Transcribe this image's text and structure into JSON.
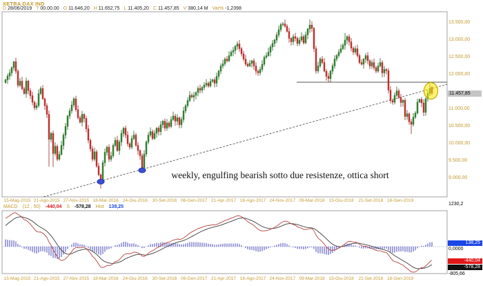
{
  "header": {
    "symbol": "XETRA DAX IND",
    "fields": [
      {
        "label": "D",
        "value": "28/06/2019"
      },
      {
        "label": "T",
        "value": "00.00.00"
      },
      {
        "label": "O",
        "value": "11.646,20"
      },
      {
        "label": "H",
        "value": "11.652,75"
      },
      {
        "label": "L",
        "value": "11.405,20"
      },
      {
        "label": "C",
        "value": "11.457,85"
      },
      {
        "label": "V",
        "value": "380,14 M"
      },
      {
        "label": "Var%",
        "value": "-1,2398"
      }
    ]
  },
  "annotation": "weekly, engulfing bearish sotto due resistenze, ottica short",
  "price_axis": {
    "labels": [
      "13.500,00",
      "13.000,00",
      "12.500,00",
      "12.000,00",
      "11.000,00",
      "10.500,00",
      "10.000,00",
      "9.500,00",
      "9.000,00"
    ],
    "label_prices": [
      13500,
      13000,
      12500,
      12000,
      11000,
      10500,
      10000,
      9500,
      9000
    ],
    "last_price_badge": "11.457,85"
  },
  "date_axis": [
    "15-Mag-2015",
    "21-Ago-2015",
    "27-Nov-2015",
    "18-Mar-2016",
    "24-Giu-2016",
    "30-Set-2016",
    "06-Gen-2017",
    "21-Apr-2017",
    "18-Ago-2017",
    "24-Nov-2017",
    "09-Mar-2018",
    "15-Giu-2018",
    "21-Set-2018",
    "18-Gen-2019"
  ],
  "macd_label": {
    "name": "MACD",
    "params": "(12 , 50)",
    "macd_value": "-440,04",
    "signal_label": "S",
    "signal_value": "-578,28",
    "hist_label": "Hist",
    "hist_value": "138,25"
  },
  "macd_axis": {
    "top": "1230,2",
    "zero": "0,0000",
    "bottom": "-805,66",
    "hist_badge": "138,25",
    "macd_badge": "-440,04",
    "signal_badge": "-578,28"
  },
  "colors": {
    "axis_text": "#c49a2e",
    "value_text": "#1a1a1a",
    "candle_up": "#2e8b2e",
    "candle_up_stroke": "#1a5c1a",
    "candle_down": "#d03030",
    "candle_down_stroke": "#9c1f1f",
    "panel_border": "#a0a0a0",
    "macd_line": "#b5403c",
    "signal_line": "#3a3a3a",
    "histogram": "#4646b4",
    "zero_dotted": "#8080d8",
    "marker_blue": "#3a4fd0",
    "marker_yellow": "#ffe800",
    "badge_blue": "#1a46e6",
    "badge_red": "#e01818",
    "badge_black": "#101010",
    "trendline": "#444444",
    "resistance": "#555555"
  },
  "chart_data": {
    "type": "candlestick+macd",
    "symbol": "XETRA DAX IND",
    "timeframe": "weekly",
    "title": "XETRA DAX INDEX weekly with MACD(12,50)",
    "ylim": [
      8455,
      13800
    ],
    "grid": false,
    "closes": [
      11850,
      11960,
      12050,
      12200,
      12375,
      12100,
      11690,
      11810,
      11590,
      11450,
      11815,
      11535,
      11390,
      11200,
      11040,
      11100,
      11450,
      11600,
      11300,
      11100,
      10850,
      10125,
      10300,
      9715,
      9925,
      9550,
      9690,
      9950,
      10250,
      10500,
      10800,
      10950,
      11120,
      11300,
      10985,
      10750,
      10620,
      10850,
      10730,
      10430,
      10100,
      9850,
      9550,
      9765,
      9350,
      9100,
      8950,
      9450,
      9750,
      9900,
      9550,
      9650,
      9950,
      10100,
      9800,
      10050,
      10300,
      10450,
      10250,
      10000,
      9900,
      10150,
      10250,
      9950,
      9800,
      9650,
      9300,
      9700,
      10050,
      10250,
      10350,
      10150,
      10300,
      10450,
      10350,
      10550,
      10650,
      10450,
      10600,
      10500,
      10700,
      10800,
      10650,
      10750,
      10550,
      10700,
      10950,
      11100,
      11250,
      11400,
      11350,
      11400,
      11481,
      11600,
      11550,
      11630,
      11700,
      11750,
      11670,
      11800,
      11850,
      11750,
      11950,
      12100,
      12250,
      12312,
      12450,
      12400,
      12550,
      12650,
      12700,
      12820,
      12888,
      12750,
      12600,
      12450,
      12300,
      12250,
      12325,
      12400,
      12250,
      12100,
      12050,
      12150,
      12300,
      12500,
      12550,
      12650,
      12800,
      12900,
      13000,
      13150,
      13300,
      13450,
      13470,
      13400,
      13250,
      13050,
      12950,
      13100,
      13050,
      12900,
      13000,
      13100,
      12918,
      13150,
      13320,
      13434,
      13340,
      12750,
      12107,
      12250,
      12450,
      12350,
      12100,
      11950,
      11886,
      12100,
      12250,
      12450,
      12550,
      12650,
      12750,
      12850,
      13000,
      13100,
      12950,
      12767,
      12650,
      12750,
      12550,
      12350,
      12300,
      12450,
      12550,
      12400,
      12250,
      12350,
      12200,
      12100,
      12250,
      12350,
      12050,
      12150,
      12111,
      11550,
      11250,
      11200,
      11400,
      11529,
      11341,
      11193,
      11257,
      10788,
      10866,
      10634,
      10559,
      10768,
      10887,
      11206,
      11282,
      11180,
      10907,
      11300,
      11458,
      11602,
      11458
    ],
    "pre_closes": [
      9800,
      9900,
      10050,
      10200,
      10350,
      10500,
      10650,
      10800,
      10950,
      11100,
      11250,
      11400,
      11550,
      11650,
      11750,
      11800
    ],
    "last_candle": {
      "open": 11646.2,
      "high": 11652.75,
      "low": 11405.2,
      "close": 11457.85
    },
    "low_overrides": {
      "21": 9338,
      "23": 9325,
      "46": 8699,
      "66": 9214,
      "196": 10279
    },
    "high_overrides": {
      "4": 12390,
      "134": 13525,
      "147": 13596,
      "164": 13204
    },
    "resistance_line": {
      "price": 11780
    },
    "trendline": {
      "x1": 63,
      "y1": 285,
      "x2": 648,
      "y2": 122,
      "style": "dashed"
    },
    "markers": {
      "blue_ellipses": [
        {
          "index": 46,
          "price": 8900
        },
        {
          "index": 66,
          "price": 9230
        }
      ],
      "yellow_ellipse": {
        "index": 205.5,
        "price": 11530
      }
    },
    "macd": {
      "fast": 12,
      "slow": 50,
      "signal_period": 9,
      "end_values": {
        "macd": -440.04,
        "signal": -578.28,
        "hist": 138.25
      },
      "axis_range": [
        -805.66,
        1230.2
      ]
    }
  }
}
